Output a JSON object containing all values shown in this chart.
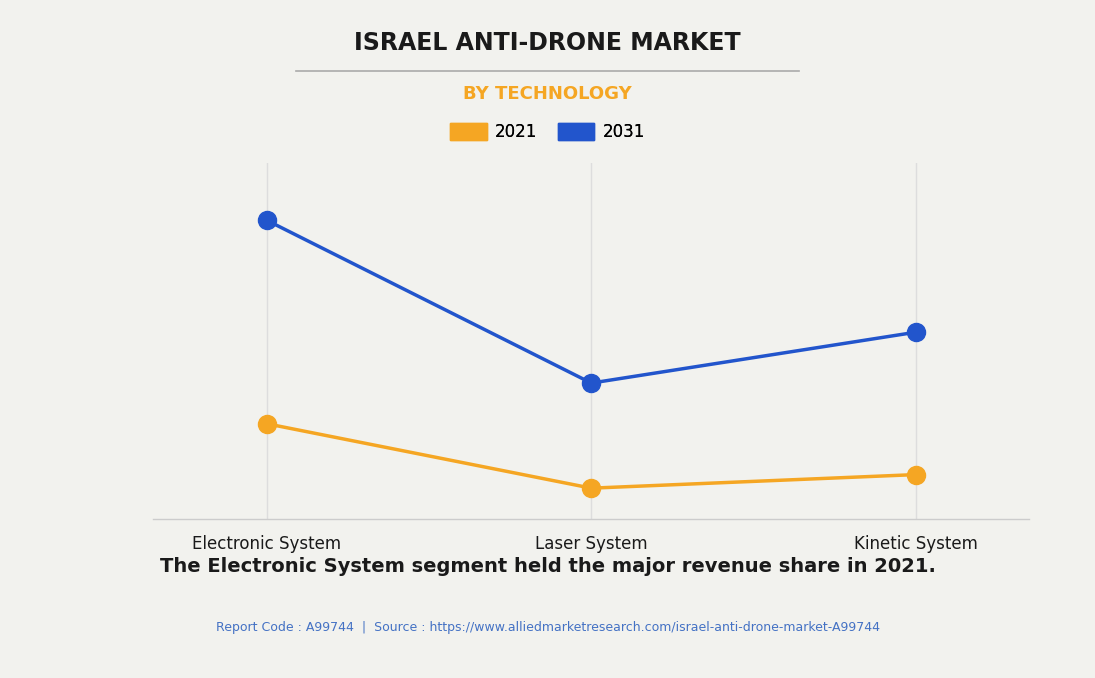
{
  "title": "ISRAEL ANTI-DRONE MARKET",
  "subtitle": "BY TECHNOLOGY",
  "categories": [
    "Electronic System",
    "Laser System",
    "Kinetic System"
  ],
  "series": {
    "2021": [
      0.28,
      0.09,
      0.13
    ],
    "2031": [
      0.88,
      0.4,
      0.55
    ]
  },
  "colors": {
    "2021": "#F5A623",
    "2031": "#2255CC"
  },
  "background_color": "#F2F2EE",
  "grid_color": "#DDDDDD",
  "title_color": "#1A1A1A",
  "subtitle_color": "#F5A623",
  "annotation": "The Electronic System segment held the major revenue share in 2021.",
  "source_text": "Report Code : A99744  |  Source : https://www.alliedmarketresearch.com/israel-anti-drone-market-A99744",
  "source_color": "#4472C4",
  "marker_size": 13,
  "line_width": 2.5,
  "title_fontsize": 17,
  "subtitle_fontsize": 13,
  "legend_fontsize": 12,
  "annotation_fontsize": 14,
  "source_fontsize": 9,
  "tick_fontsize": 12
}
